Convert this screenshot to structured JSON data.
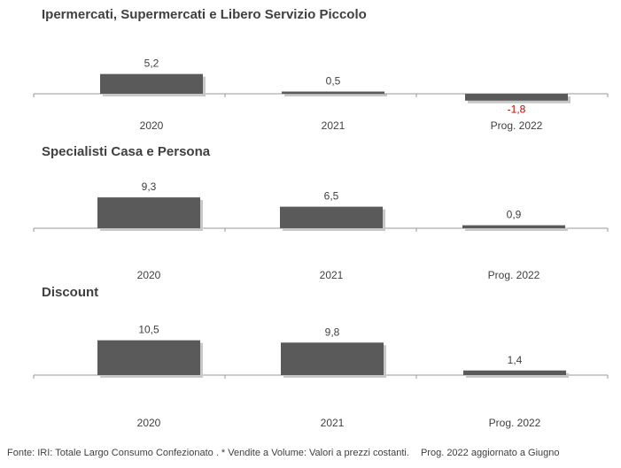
{
  "chart_data": [
    {
      "type": "bar",
      "title": "Ipermercati,  Supermercati e Libero Servizio Piccolo",
      "categories": [
        "2020",
        "2021",
        "Prog. 2022"
      ],
      "values": [
        5.2,
        0.5,
        -1.8
      ],
      "value_labels": [
        "5,2",
        "0,5",
        "-1,8"
      ],
      "ylim": [
        -2,
        6
      ],
      "grid": false
    },
    {
      "type": "bar",
      "title": "Specialisti  Casa e Persona",
      "categories": [
        "2020",
        "2021",
        "Prog. 2022"
      ],
      "values": [
        9.3,
        6.5,
        0.9
      ],
      "value_labels": [
        "9,3",
        "6,5",
        "0,9"
      ],
      "ylim": [
        0,
        10
      ],
      "grid": false
    },
    {
      "type": "bar",
      "title": "Discount",
      "categories": [
        "2020",
        "2021",
        "Prog. 2022"
      ],
      "values": [
        10.5,
        9.8,
        1.4
      ],
      "value_labels": [
        "10,5",
        "9,8",
        "1,4"
      ],
      "ylim": [
        0,
        11
      ],
      "grid": false
    }
  ],
  "colors": {
    "bar": "#5a5a5a",
    "negative_label": "#c00000",
    "text": "#404040",
    "axis": "#9a9a9a"
  },
  "footer": {
    "source": "Fonte: IRI: Totale Largo Consumo Confezionato . * Vendite a Volume: Valori a prezzi costanti.",
    "note": "Prog. 2022 aggiornato a Giugno"
  }
}
